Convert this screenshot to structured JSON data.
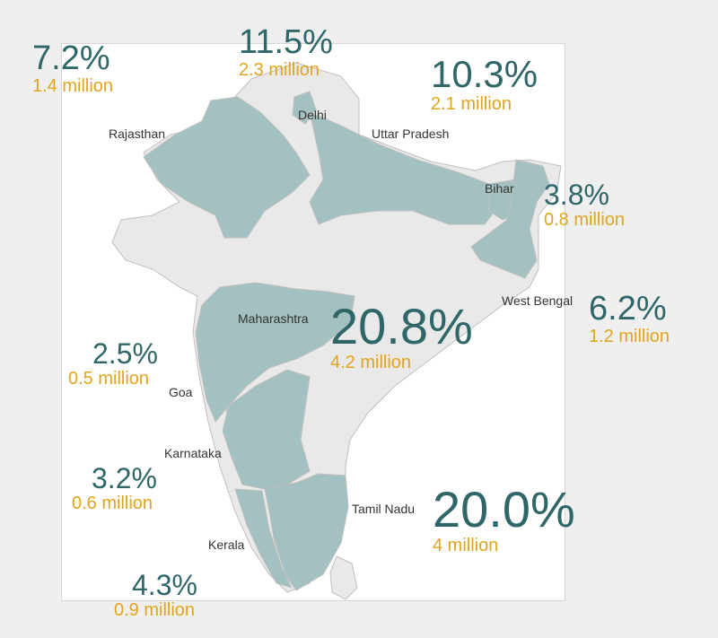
{
  "colors": {
    "background": "#efefef",
    "map_panel": "#ffffff",
    "highlight_state": "#a3c1c0",
    "other_state": "#e9e9e9",
    "border": "#bfbfbf",
    "percent_text": "#2f6668",
    "million_text": "#e0a51d"
  },
  "states": [
    {
      "id": "rajasthan",
      "label": "Rajasthan",
      "percent": "7.2%",
      "million": "1.4 million"
    },
    {
      "id": "delhi",
      "label": "Delhi",
      "percent": "11.5%",
      "million": "2.3 million"
    },
    {
      "id": "uttar-pradesh",
      "label": "Uttar Pradesh",
      "percent": "10.3%",
      "million": "2.1 million"
    },
    {
      "id": "bihar",
      "label": "Bihar",
      "percent": "3.8%",
      "million": "0.8 million"
    },
    {
      "id": "west-bengal",
      "label": "West Bengal",
      "percent": "6.2%",
      "million": "1.2 million"
    },
    {
      "id": "maharashtra",
      "label": "Maharashtra",
      "percent": "20.8%",
      "million": "4.2 million"
    },
    {
      "id": "goa",
      "label": "Goa",
      "percent": "2.5%",
      "million": "0.5 million"
    },
    {
      "id": "karnataka",
      "label": "Karnataka",
      "percent": "3.2%",
      "million": "0.6 million"
    },
    {
      "id": "tamil-nadu",
      "label": "Tamil Nadu",
      "percent": "20.0%",
      "million": "4 million"
    },
    {
      "id": "kerala",
      "label": "Kerala",
      "percent": "4.3%",
      "million": "0.9 million"
    }
  ]
}
